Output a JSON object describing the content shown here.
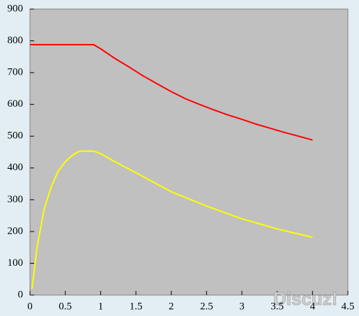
{
  "chart_data": {
    "type": "line",
    "series": [
      {
        "color": "#ff0000",
        "x": [
          0,
          0.5,
          0.9,
          1.0,
          1.2,
          1.4,
          1.6,
          1.8,
          2.0,
          2.2,
          2.4,
          2.6,
          2.8,
          3.0,
          3.2,
          3.4,
          3.6,
          3.8,
          4.0
        ],
        "values": [
          788,
          788,
          788,
          775,
          745,
          718,
          690,
          665,
          640,
          618,
          600,
          583,
          567,
          553,
          538,
          525,
          512,
          500,
          488
        ]
      },
      {
        "color": "#ffff00",
        "x": [
          0.03,
          0.1,
          0.2,
          0.3,
          0.4,
          0.5,
          0.6,
          0.7,
          0.9,
          1.0,
          1.2,
          1.5,
          2.0,
          2.5,
          3.0,
          3.5,
          4.0
        ],
        "values": [
          20,
          150,
          270,
          340,
          390,
          420,
          440,
          453,
          453,
          445,
          420,
          385,
          325,
          280,
          240,
          208,
          182
        ]
      }
    ],
    "xlim": [
      0,
      4.5
    ],
    "xticks": [
      0,
      0.5,
      1,
      1.5,
      2,
      2.5,
      3,
      3.5,
      4,
      4.5
    ],
    "ylim": [
      0,
      900
    ],
    "yticks": [
      0,
      100,
      200,
      300,
      400,
      500,
      600,
      700,
      800,
      900
    ],
    "plot_background": "#c0c0c0",
    "watermark": "Discuz!"
  }
}
